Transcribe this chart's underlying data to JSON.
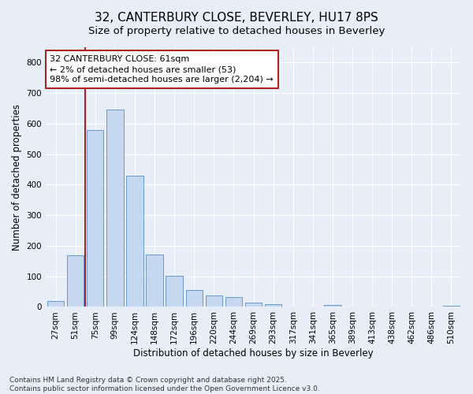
{
  "title_line1": "32, CANTERBURY CLOSE, BEVERLEY, HU17 8PS",
  "title_line2": "Size of property relative to detached houses in Beverley",
  "xlabel": "Distribution of detached houses by size in Beverley",
  "ylabel": "Number of detached properties",
  "categories": [
    "27sqm",
    "51sqm",
    "75sqm",
    "99sqm",
    "124sqm",
    "148sqm",
    "172sqm",
    "196sqm",
    "220sqm",
    "244sqm",
    "269sqm",
    "293sqm",
    "317sqm",
    "341sqm",
    "365sqm",
    "389sqm",
    "413sqm",
    "438sqm",
    "462sqm",
    "486sqm",
    "510sqm"
  ],
  "values": [
    20,
    168,
    580,
    645,
    430,
    172,
    103,
    55,
    38,
    31,
    14,
    10,
    0,
    0,
    7,
    0,
    0,
    0,
    0,
    0,
    5
  ],
  "bar_color": "#c5d8f0",
  "bar_edge_color": "#6699cc",
  "vline_x_idx": 1.5,
  "vline_color": "#aa2222",
  "annotation_text": "32 CANTERBURY CLOSE: 61sqm\n← 2% of detached houses are smaller (53)\n98% of semi-detached houses are larger (2,204) →",
  "annotation_box_color": "#ffffff",
  "annotation_box_edge_color": "#aa2222",
  "ylim": [
    0,
    850
  ],
  "yticks": [
    0,
    100,
    200,
    300,
    400,
    500,
    600,
    700,
    800
  ],
  "background_color": "#e8eef8",
  "grid_color": "#ffffff",
  "footnote": "Contains HM Land Registry data © Crown copyright and database right 2025.\nContains public sector information licensed under the Open Government Licence v3.0.",
  "title_fontsize": 11,
  "subtitle_fontsize": 9.5,
  "axis_label_fontsize": 8.5,
  "tick_fontsize": 7.5,
  "annotation_fontsize": 8
}
